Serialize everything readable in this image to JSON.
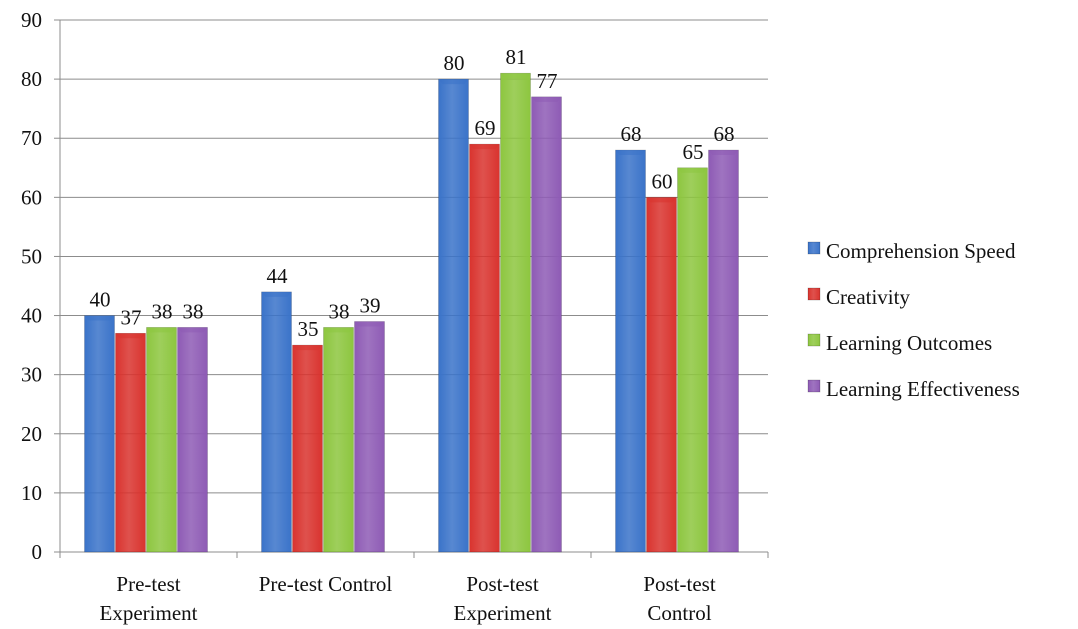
{
  "chart_data": {
    "type": "bar",
    "categories": [
      [
        "Pre-test",
        "Experiment"
      ],
      [
        "Pre-test Control"
      ],
      [
        "Post-test",
        "Experiment"
      ],
      [
        "Post-test",
        "Control"
      ]
    ],
    "series": [
      {
        "name": "Comprehension Speed",
        "values": [
          40,
          44,
          80,
          68
        ],
        "color": "#3a73c9"
      },
      {
        "name": "Creativity",
        "values": [
          37,
          35,
          69,
          60
        ],
        "color": "#d9332e"
      },
      {
        "name": "Learning Outcomes",
        "values": [
          38,
          38,
          81,
          65
        ],
        "color": "#8dc63f"
      },
      {
        "name": "Learning Effectiveness",
        "values": [
          38,
          39,
          77,
          68
        ],
        "color": "#8e5bb5"
      }
    ],
    "y_ticks": [
      0,
      10,
      20,
      30,
      40,
      50,
      60,
      70,
      80,
      90
    ],
    "ylim": [
      0,
      90
    ],
    "grid": true,
    "legend_position": "right"
  }
}
